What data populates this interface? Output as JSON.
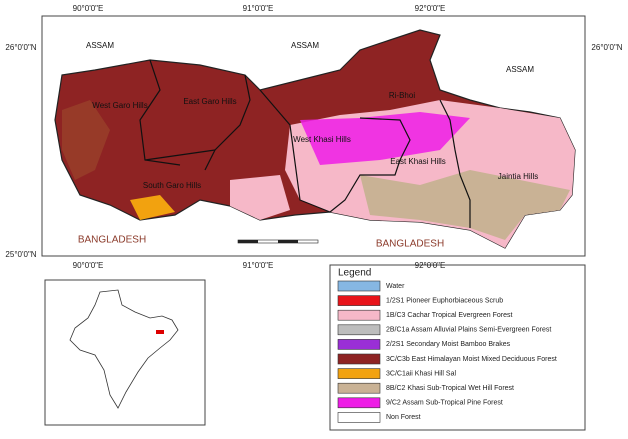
{
  "coordinates": {
    "top": [
      "90°0'0\"E",
      "91°0'0\"E",
      "92°0'0\"E"
    ],
    "bottom": [
      "90°0'0\"E",
      "91°0'0\"E",
      "92°0'0\"E"
    ],
    "left": [
      "26°0'0\"N",
      "25°0'0\"N"
    ],
    "right": [
      "26°0'0\"N"
    ]
  },
  "regions": {
    "assam": [
      "ASSAM",
      "ASSAM",
      "ASSAM"
    ],
    "districts": [
      "West Garo Hills",
      "East Garo Hills",
      "Ri-Bhoi",
      "West Khasi Hills",
      "East Khasi Hills",
      "Jaintia Hills",
      "South Garo Hills"
    ],
    "bangladesh": [
      "BANGLADESH",
      "BANGLADESH"
    ]
  },
  "legend": {
    "title": "Legend",
    "items": [
      {
        "label": "Water",
        "color": "#86b7e3"
      },
      {
        "label": "1/2S1 Pioneer Euphorbiaceous Scrub",
        "color": "#e8141a"
      },
      {
        "label": "1B/C3 Cachar Tropical Evergreen Forest",
        "color": "#f6b8c8"
      },
      {
        "label": "2B/C1a Assam Alluvial Plains Semi-Evergreen Forest",
        "color": "#bdbdbd"
      },
      {
        "label": "2/2S1 Secondary Moist Bamboo Brakes",
        "color": "#9a2fd6"
      },
      {
        "label": "3C/C3b  East Himalayan Moist Mixed Deciduous Forest",
        "color": "#8e2323"
      },
      {
        "label": "3C/C1aii Khasi Hill Sal",
        "color": "#f2a20f"
      },
      {
        "label": "8B/C2 Khasi Sub-Tropical Wet Hill Forest",
        "color": "#c9b295"
      },
      {
        "label": "9/C2 Assam Sub-Tropical Pine Forest",
        "color": "#ee1ce6"
      },
      {
        "label": "Non Forest",
        "color": "#ffffff"
      }
    ]
  }
}
